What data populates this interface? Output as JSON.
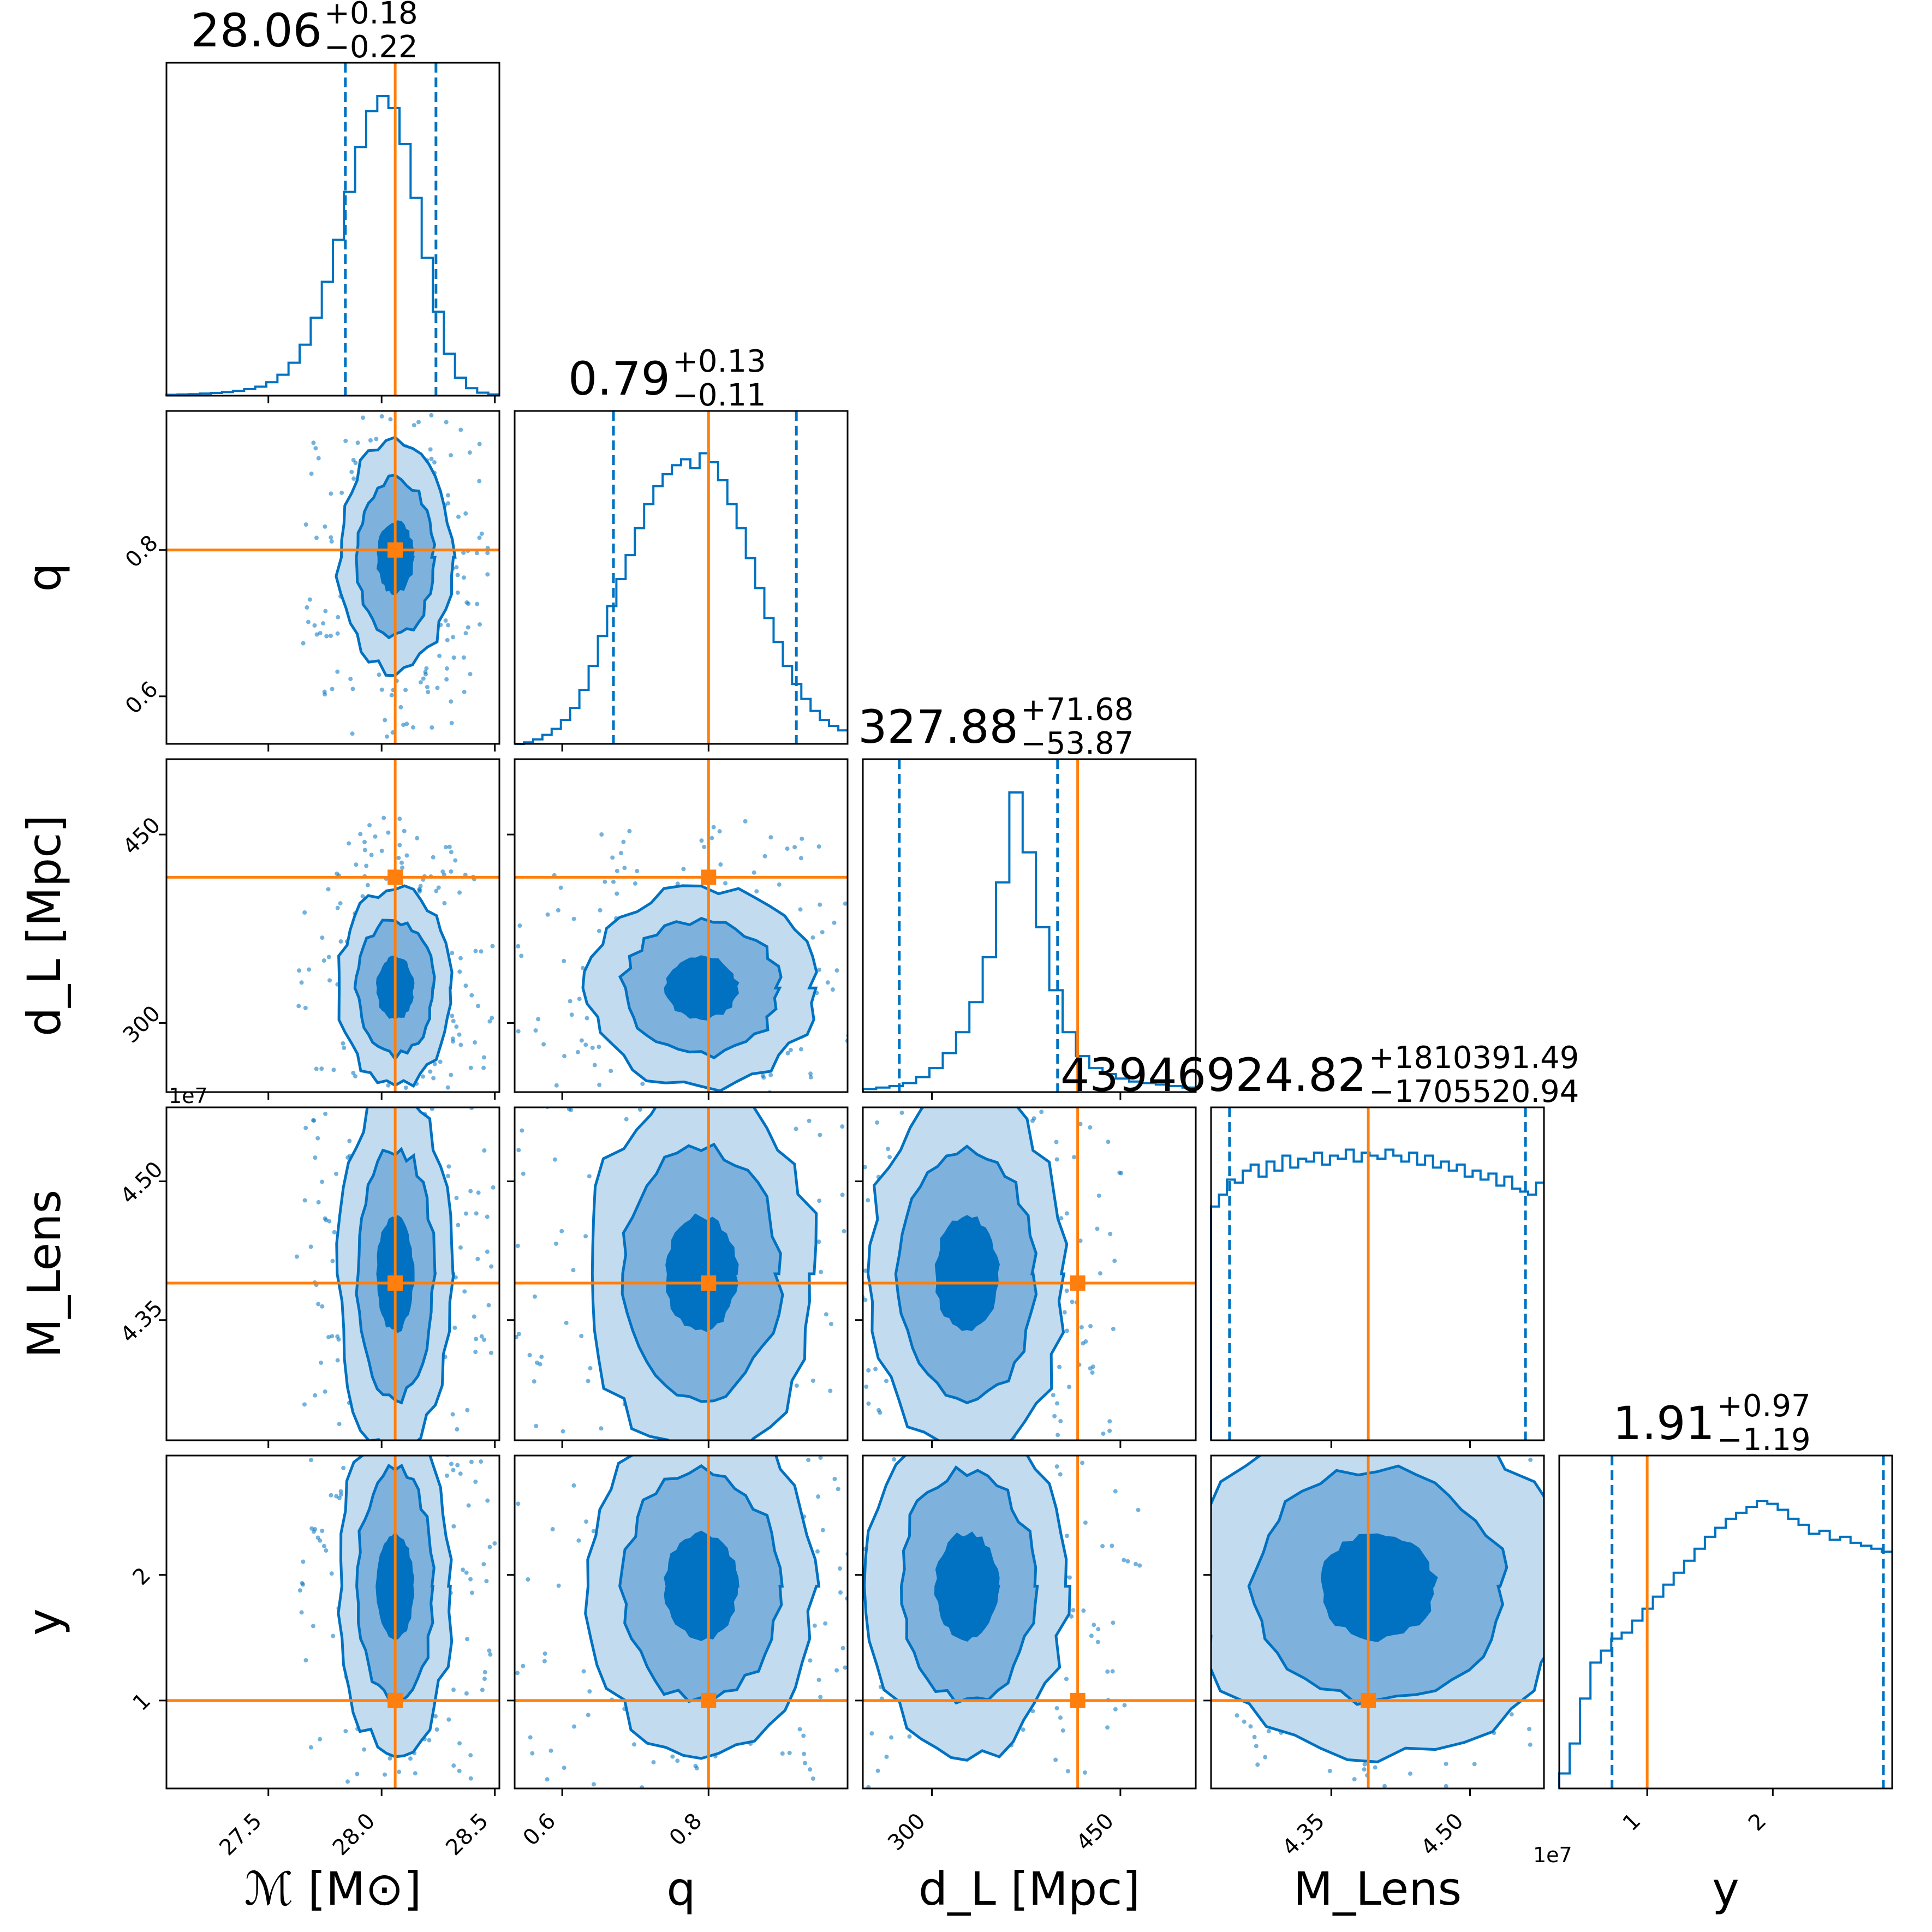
{
  "chart_data": {
    "type": "corner",
    "colors": {
      "hist": "#0072c1",
      "contour_outer": "#c2dbef",
      "contour_mid": "#7fb1dd",
      "contour_inner": "#0072c1",
      "truth": "#ff7f0e",
      "axis": "#000000"
    },
    "parameters": [
      {
        "key": "Mc",
        "label": "ℳ [M⊙]",
        "range": [
          27.05,
          28.52
        ],
        "ticks": [
          27.5,
          28.0,
          28.5
        ],
        "tick_labels": [
          "27.5",
          "28.0",
          "28.5"
        ],
        "truth": 28.06,
        "median": 28.06,
        "plus": "+0.18",
        "minus": "−0.22",
        "title_value": "28.06",
        "q_lo": 27.84,
        "q_hi": 28.24
      },
      {
        "key": "q",
        "label": "q",
        "range": [
          0.535,
          0.99
        ],
        "ticks": [
          0.6,
          0.8
        ],
        "tick_labels": [
          "0.6",
          "0.8"
        ],
        "truth": 0.8,
        "median": 0.79,
        "plus": "+0.13",
        "minus": "−0.11",
        "title_value": "0.79",
        "q_lo": 0.67,
        "q_hi": 0.92
      },
      {
        "key": "dL",
        "label": "dₗ [Mpc]",
        "range": [
          245,
          510
        ],
        "ticks": [
          300,
          450
        ],
        "tick_labels": [
          "300",
          "450"
        ],
        "truth": 416,
        "median": 327.88,
        "plus": "+71.68",
        "minus": "−53.87",
        "title_value": "327.88",
        "q_lo": 274,
        "q_hi": 400
      },
      {
        "key": "ML",
        "label": "M_Lens",
        "range": [
          42200000.0,
          45800000.0
        ],
        "ticks": [
          43500000.0,
          45000000.0
        ],
        "tick_labels": [
          "4.35",
          "4.50"
        ],
        "sci": "1e7",
        "truth": 43900000.0,
        "median": 43946924.82,
        "plus": "+1810391.49",
        "minus": "−1705520.94",
        "title_value": "43946924.82",
        "q_lo": 42400000.0,
        "q_hi": 45600000.0
      },
      {
        "key": "y",
        "label": "y",
        "range": [
          0.3,
          2.95
        ],
        "ticks": [
          1,
          2
        ],
        "tick_labels": [
          "1",
          "2"
        ],
        "truth": 1.0,
        "median": 1.91,
        "plus": "+0.97",
        "minus": "−1.19",
        "title_value": "1.91",
        "q_lo": 0.72,
        "q_hi": 2.88
      }
    ],
    "axis_labels": {
      "x": [
        "ℳ [M⊙]",
        "q",
        "d_L [Mpc]",
        "M_Lens",
        "y"
      ],
      "y": [
        "q",
        "d_L [Mpc]",
        "M_Lens",
        "y"
      ]
    },
    "titles": [
      {
        "value": "28.06",
        "plus": "+0.18",
        "minus": "−0.22"
      },
      {
        "value": "0.79",
        "plus": "+0.13",
        "minus": "−0.11"
      },
      {
        "value": "327.88",
        "plus": "+71.68",
        "minus": "−53.87"
      },
      {
        "value": "43946924.82",
        "plus": "+1810391.49",
        "minus": "−1705520.94"
      },
      {
        "value": "1.91",
        "plus": "+0.97",
        "minus": "−1.19"
      }
    ],
    "sci_offset_text": "1e7",
    "histograms": {
      "Mc": [
        0.003,
        0.004,
        0.005,
        0.007,
        0.009,
        0.012,
        0.016,
        0.022,
        0.03,
        0.045,
        0.07,
        0.11,
        0.17,
        0.26,
        0.38,
        0.52,
        0.68,
        0.83,
        0.95,
        1.0,
        0.96,
        0.84,
        0.66,
        0.46,
        0.28,
        0.14,
        0.06,
        0.025,
        0.01,
        0.004
      ],
      "q": [
        0.0,
        0.005,
        0.015,
        0.03,
        0.05,
        0.08,
        0.12,
        0.18,
        0.26,
        0.36,
        0.46,
        0.55,
        0.63,
        0.72,
        0.8,
        0.86,
        0.9,
        0.93,
        0.95,
        0.92,
        0.97,
        0.94,
        0.88,
        0.8,
        0.72,
        0.62,
        0.52,
        0.42,
        0.34,
        0.26,
        0.2,
        0.15,
        0.11,
        0.08,
        0.06,
        0.045
      ],
      "dL": [
        0.01,
        0.015,
        0.02,
        0.03,
        0.05,
        0.08,
        0.13,
        0.2,
        0.3,
        0.45,
        0.7,
        1.0,
        0.8,
        0.55,
        0.34,
        0.2,
        0.12,
        0.08,
        0.06,
        0.045,
        0.035,
        0.03,
        0.025,
        0.02,
        0.015
      ],
      "ML": [
        0.78,
        0.82,
        0.87,
        0.86,
        0.9,
        0.92,
        0.88,
        0.93,
        0.9,
        0.95,
        0.91,
        0.94,
        0.93,
        0.96,
        0.92,
        0.95,
        0.94,
        0.97,
        0.93,
        0.96,
        0.95,
        0.94,
        0.97,
        0.95,
        0.93,
        0.96,
        0.92,
        0.95,
        0.91,
        0.93,
        0.9,
        0.92,
        0.88,
        0.9,
        0.87,
        0.89,
        0.85,
        0.88,
        0.84,
        0.83,
        0.82,
        0.86
      ],
      "y": [
        0.05,
        0.15,
        0.3,
        0.42,
        0.46,
        0.5,
        0.52,
        0.56,
        0.6,
        0.64,
        0.68,
        0.72,
        0.76,
        0.8,
        0.84,
        0.87,
        0.9,
        0.92,
        0.94,
        0.96,
        0.95,
        0.93,
        0.9,
        0.88,
        0.85,
        0.86,
        0.83,
        0.84,
        0.82,
        0.81,
        0.8,
        0.79
      ]
    }
  }
}
